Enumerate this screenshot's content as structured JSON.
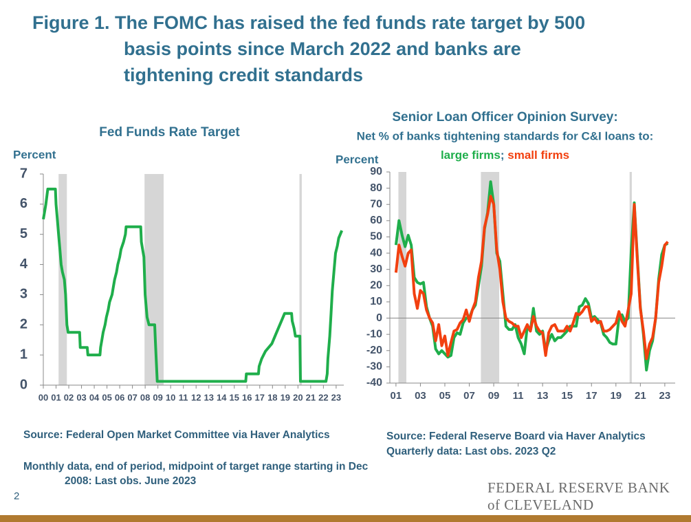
{
  "header": {
    "title": "Figure 1. The FOMC has raised the fed funds rate target by 500 basis points since March 2022 and banks are tightening credit standards"
  },
  "chart_data": [
    {
      "type": "line",
      "title": "Fed Funds Rate Target",
      "y_label": "Percent",
      "xlim": [
        2000,
        2023.6
      ],
      "ylim": [
        0,
        7
      ],
      "yticks": [
        0,
        1,
        2,
        3,
        4,
        5,
        6,
        7
      ],
      "xticks": [
        {
          "value": 2000,
          "label": "00"
        },
        {
          "value": 2001,
          "label": "01"
        },
        {
          "value": 2002,
          "label": "02"
        },
        {
          "value": 2003,
          "label": "03"
        },
        {
          "value": 2004,
          "label": "04"
        },
        {
          "value": 2005,
          "label": "05"
        },
        {
          "value": 2006,
          "label": "06"
        },
        {
          "value": 2007,
          "label": "07"
        },
        {
          "value": 2008,
          "label": "08"
        },
        {
          "value": 2009,
          "label": "09"
        },
        {
          "value": 2010,
          "label": "10"
        },
        {
          "value": 2011,
          "label": "11"
        },
        {
          "value": 2012,
          "label": "12"
        },
        {
          "value": 2013,
          "label": "13"
        },
        {
          "value": 2014,
          "label": "14"
        },
        {
          "value": 2015,
          "label": "15"
        },
        {
          "value": 2016,
          "label": "16"
        },
        {
          "value": 2017,
          "label": "17"
        },
        {
          "value": 2018,
          "label": "18"
        },
        {
          "value": 2019,
          "label": "19"
        },
        {
          "value": 2020,
          "label": "20"
        },
        {
          "value": 2021,
          "label": "21"
        },
        {
          "value": 2022,
          "label": "22"
        },
        {
          "value": 2023,
          "label": "23"
        }
      ],
      "recessions": [
        [
          2001.2,
          2001.85
        ],
        [
          2007.95,
          2009.45
        ],
        [
          2020.12,
          2020.3
        ]
      ],
      "recession_color": "#d6d6d6",
      "x": [
        2000.0,
        2000.1,
        2000.2,
        2000.35,
        2000.95,
        2001.0,
        2001.1,
        2001.2,
        2001.3,
        2001.4,
        2001.5,
        2001.65,
        2001.75,
        2001.8,
        2001.85,
        2001.95,
        2002.85,
        2002.9,
        2003.45,
        2003.5,
        2004.45,
        2004.5,
        2004.6,
        2004.7,
        2004.85,
        2004.95,
        2005.1,
        2005.2,
        2005.4,
        2005.5,
        2005.6,
        2005.75,
        2005.85,
        2006.0,
        2006.1,
        2006.3,
        2006.45,
        2006.5,
        2007.65,
        2007.7,
        2007.8,
        2007.9,
        2008.0,
        2008.15,
        2008.3,
        2008.75,
        2008.8,
        2008.85,
        2008.95,
        2015.9,
        2015.95,
        2016.9,
        2016.95,
        2017.15,
        2017.45,
        2017.95,
        2018.2,
        2018.45,
        2018.7,
        2018.95,
        2019.5,
        2019.55,
        2019.7,
        2019.8,
        2020.15,
        2020.2,
        2022.2,
        2022.3,
        2022.35,
        2022.5,
        2022.6,
        2022.7,
        2022.85,
        2022.95,
        2023.1,
        2023.2,
        2023.45
      ],
      "series": [
        {
          "name": "Fed funds rate target",
          "color": "#1fae4b",
          "values": [
            5.5,
            5.75,
            6.0,
            6.5,
            6.5,
            6.0,
            5.5,
            5.0,
            4.5,
            4.0,
            3.75,
            3.5,
            3.0,
            2.5,
            2.0,
            1.75,
            1.75,
            1.25,
            1.25,
            1.0,
            1.0,
            1.25,
            1.5,
            1.75,
            2.0,
            2.25,
            2.5,
            2.75,
            3.0,
            3.25,
            3.5,
            3.75,
            4.0,
            4.25,
            4.5,
            4.75,
            5.0,
            5.25,
            5.25,
            4.75,
            4.5,
            4.25,
            3.0,
            2.25,
            2.0,
            2.0,
            1.5,
            1.0,
            0.125,
            0.125,
            0.375,
            0.375,
            0.625,
            0.875,
            1.125,
            1.375,
            1.625,
            1.875,
            2.125,
            2.375,
            2.375,
            2.125,
            1.875,
            1.625,
            1.625,
            0.125,
            0.125,
            0.375,
            0.875,
            1.625,
            2.375,
            3.125,
            3.875,
            4.375,
            4.625,
            4.875,
            5.125
          ]
        }
      ]
    },
    {
      "type": "line",
      "title": "Senior Loan Officer Opinion Survey:",
      "subtitle": "Net % of banks tightening standards for C&I loans to:",
      "legend_separator": ";",
      "y_label": "Percent",
      "xlim": [
        2000.5,
        2023.85
      ],
      "ylim": [
        -40,
        90
      ],
      "yticks": [
        -40,
        -30,
        -20,
        -10,
        0,
        10,
        20,
        30,
        40,
        50,
        60,
        70,
        80,
        90
      ],
      "xticks": [
        {
          "value": 2001,
          "label": "01"
        },
        {
          "value": 2003,
          "label": "03"
        },
        {
          "value": 2005,
          "label": "05"
        },
        {
          "value": 2007,
          "label": "07"
        },
        {
          "value": 2009,
          "label": "09"
        },
        {
          "value": 2011,
          "label": "11"
        },
        {
          "value": 2013,
          "label": "13"
        },
        {
          "value": 2015,
          "label": "15"
        },
        {
          "value": 2017,
          "label": "17"
        },
        {
          "value": 2019,
          "label": "19"
        },
        {
          "value": 2021,
          "label": "21"
        },
        {
          "value": 2023,
          "label": "23"
        }
      ],
      "recessions": [
        [
          2001.2,
          2001.85
        ],
        [
          2007.95,
          2009.45
        ],
        [
          2020.12,
          2020.3
        ]
      ],
      "recession_color": "#d6d6d6",
      "x": [
        2001,
        2001.25,
        2001.5,
        2001.75,
        2002,
        2002.25,
        2002.5,
        2002.75,
        2003,
        2003.25,
        2003.5,
        2003.75,
        2004,
        2004.25,
        2004.5,
        2004.75,
        2005,
        2005.25,
        2005.5,
        2005.75,
        2006,
        2006.25,
        2006.5,
        2006.75,
        2007,
        2007.25,
        2007.5,
        2007.75,
        2008,
        2008.25,
        2008.5,
        2008.75,
        2009,
        2009.25,
        2009.5,
        2009.75,
        2010,
        2010.25,
        2010.5,
        2010.75,
        2011,
        2011.25,
        2011.5,
        2011.75,
        2012,
        2012.25,
        2012.5,
        2012.75,
        2013,
        2013.25,
        2013.5,
        2013.75,
        2014,
        2014.25,
        2014.5,
        2014.75,
        2015,
        2015.25,
        2015.5,
        2015.75,
        2016,
        2016.25,
        2016.5,
        2016.75,
        2017,
        2017.25,
        2017.5,
        2017.75,
        2018,
        2018.25,
        2018.5,
        2018.75,
        2019,
        2019.25,
        2019.5,
        2019.75,
        2020,
        2020.25,
        2020.5,
        2020.75,
        2021,
        2021.25,
        2021.5,
        2021.75,
        2022,
        2022.25,
        2022.5,
        2022.75,
        2023,
        2023.25
      ],
      "series": [
        {
          "name": "large firms",
          "color": "#1fae4b",
          "values": [
            45,
            60,
            51,
            44,
            51,
            45,
            25,
            22,
            21,
            22,
            7,
            0,
            -5,
            -19,
            -22,
            -20,
            -22,
            -24,
            -23,
            -12,
            -9,
            -10,
            -3,
            0,
            0,
            5,
            8,
            20,
            32,
            55,
            65,
            84,
            70,
            40,
            35,
            15,
            -5,
            -7,
            -7,
            -4,
            -12,
            -16,
            -22,
            -5,
            -8,
            6,
            -8,
            -10,
            -8,
            -20,
            -14,
            -10,
            -14,
            -12,
            -12,
            -10,
            -8,
            -5,
            -5,
            -5,
            7,
            8,
            12,
            9,
            0,
            1,
            -1,
            -3,
            -10,
            -12,
            -15,
            -16,
            -16,
            0,
            2,
            -2,
            0,
            41,
            71,
            38,
            7,
            -10,
            -32,
            -20,
            -14,
            0,
            24,
            39,
            45,
            46
          ]
        },
        {
          "name": "small firms",
          "color": "#f2400f",
          "values": [
            28,
            45,
            38,
            32,
            40,
            42,
            15,
            6,
            17,
            15,
            5,
            0,
            -3,
            -14,
            -4,
            -17,
            -11,
            -23,
            -15,
            -8,
            -7,
            -3,
            -1,
            5,
            -2,
            5,
            10,
            25,
            35,
            56,
            64,
            75,
            70,
            42,
            30,
            10,
            0,
            -2,
            -3,
            -5,
            -5,
            -12,
            -8,
            -4,
            -8,
            1,
            -5,
            -8,
            -9,
            -23,
            -9,
            -5,
            -4,
            -8,
            -8,
            -8,
            -5,
            -8,
            -3,
            3,
            2,
            4,
            7,
            7,
            -2,
            0,
            -3,
            -2,
            -8,
            -8,
            -7,
            -5,
            -3,
            4,
            -2,
            -5,
            5,
            15,
            70,
            36,
            6,
            -8,
            -25,
            -16,
            -12,
            0,
            22,
            32,
            45,
            47
          ]
        }
      ]
    }
  ],
  "footer": {
    "left_source": "Source: Federal Open Market Committee via Haver Analytics",
    "left_note": "Monthly data, end of period, midpoint of target range starting in Dec 2008: Last obs. June 2023",
    "right_source": "Source: Federal Reserve Board via Haver Analytics",
    "right_note": "Quarterly data: Last obs. 2023 Q2",
    "page_number": "2",
    "logo_line1": "FEDERAL RESERVE BANK",
    "logo_line2": "of CLEVELAND"
  }
}
